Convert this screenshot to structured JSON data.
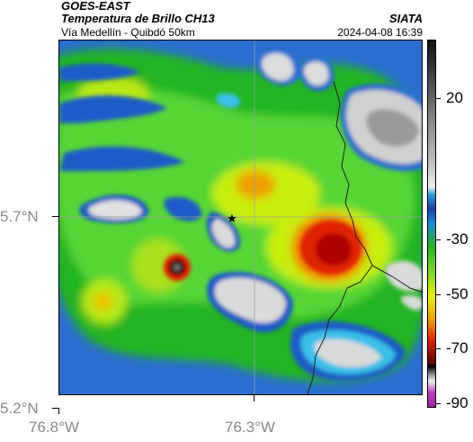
{
  "header": {
    "satellite": "GOES-EAST",
    "product": "Temperatura de Brillo CH13",
    "organization": "SIATA",
    "region": "Vía Medellín - Quibdó 50km",
    "timestamp": "2024-04-08 16:39"
  },
  "axes": {
    "lat_labels": [
      "5.7°N",
      "5.2°N"
    ],
    "lon_labels": [
      "76.8°W",
      "76.3°W"
    ]
  },
  "colorbar": {
    "labels": [
      "20",
      "-30",
      "-50",
      "-70",
      "-90"
    ],
    "unit": ""
  },
  "colors": {
    "warm_clear": "#2a6fd0",
    "cold_top": "#c0c0c0",
    "mid_green": "#2bc32b",
    "yellow": "#e8f000",
    "orange": "#f0a000",
    "red": "#d00000",
    "deep": "#111111"
  },
  "map": {
    "marker_icon": "star-icon"
  }
}
